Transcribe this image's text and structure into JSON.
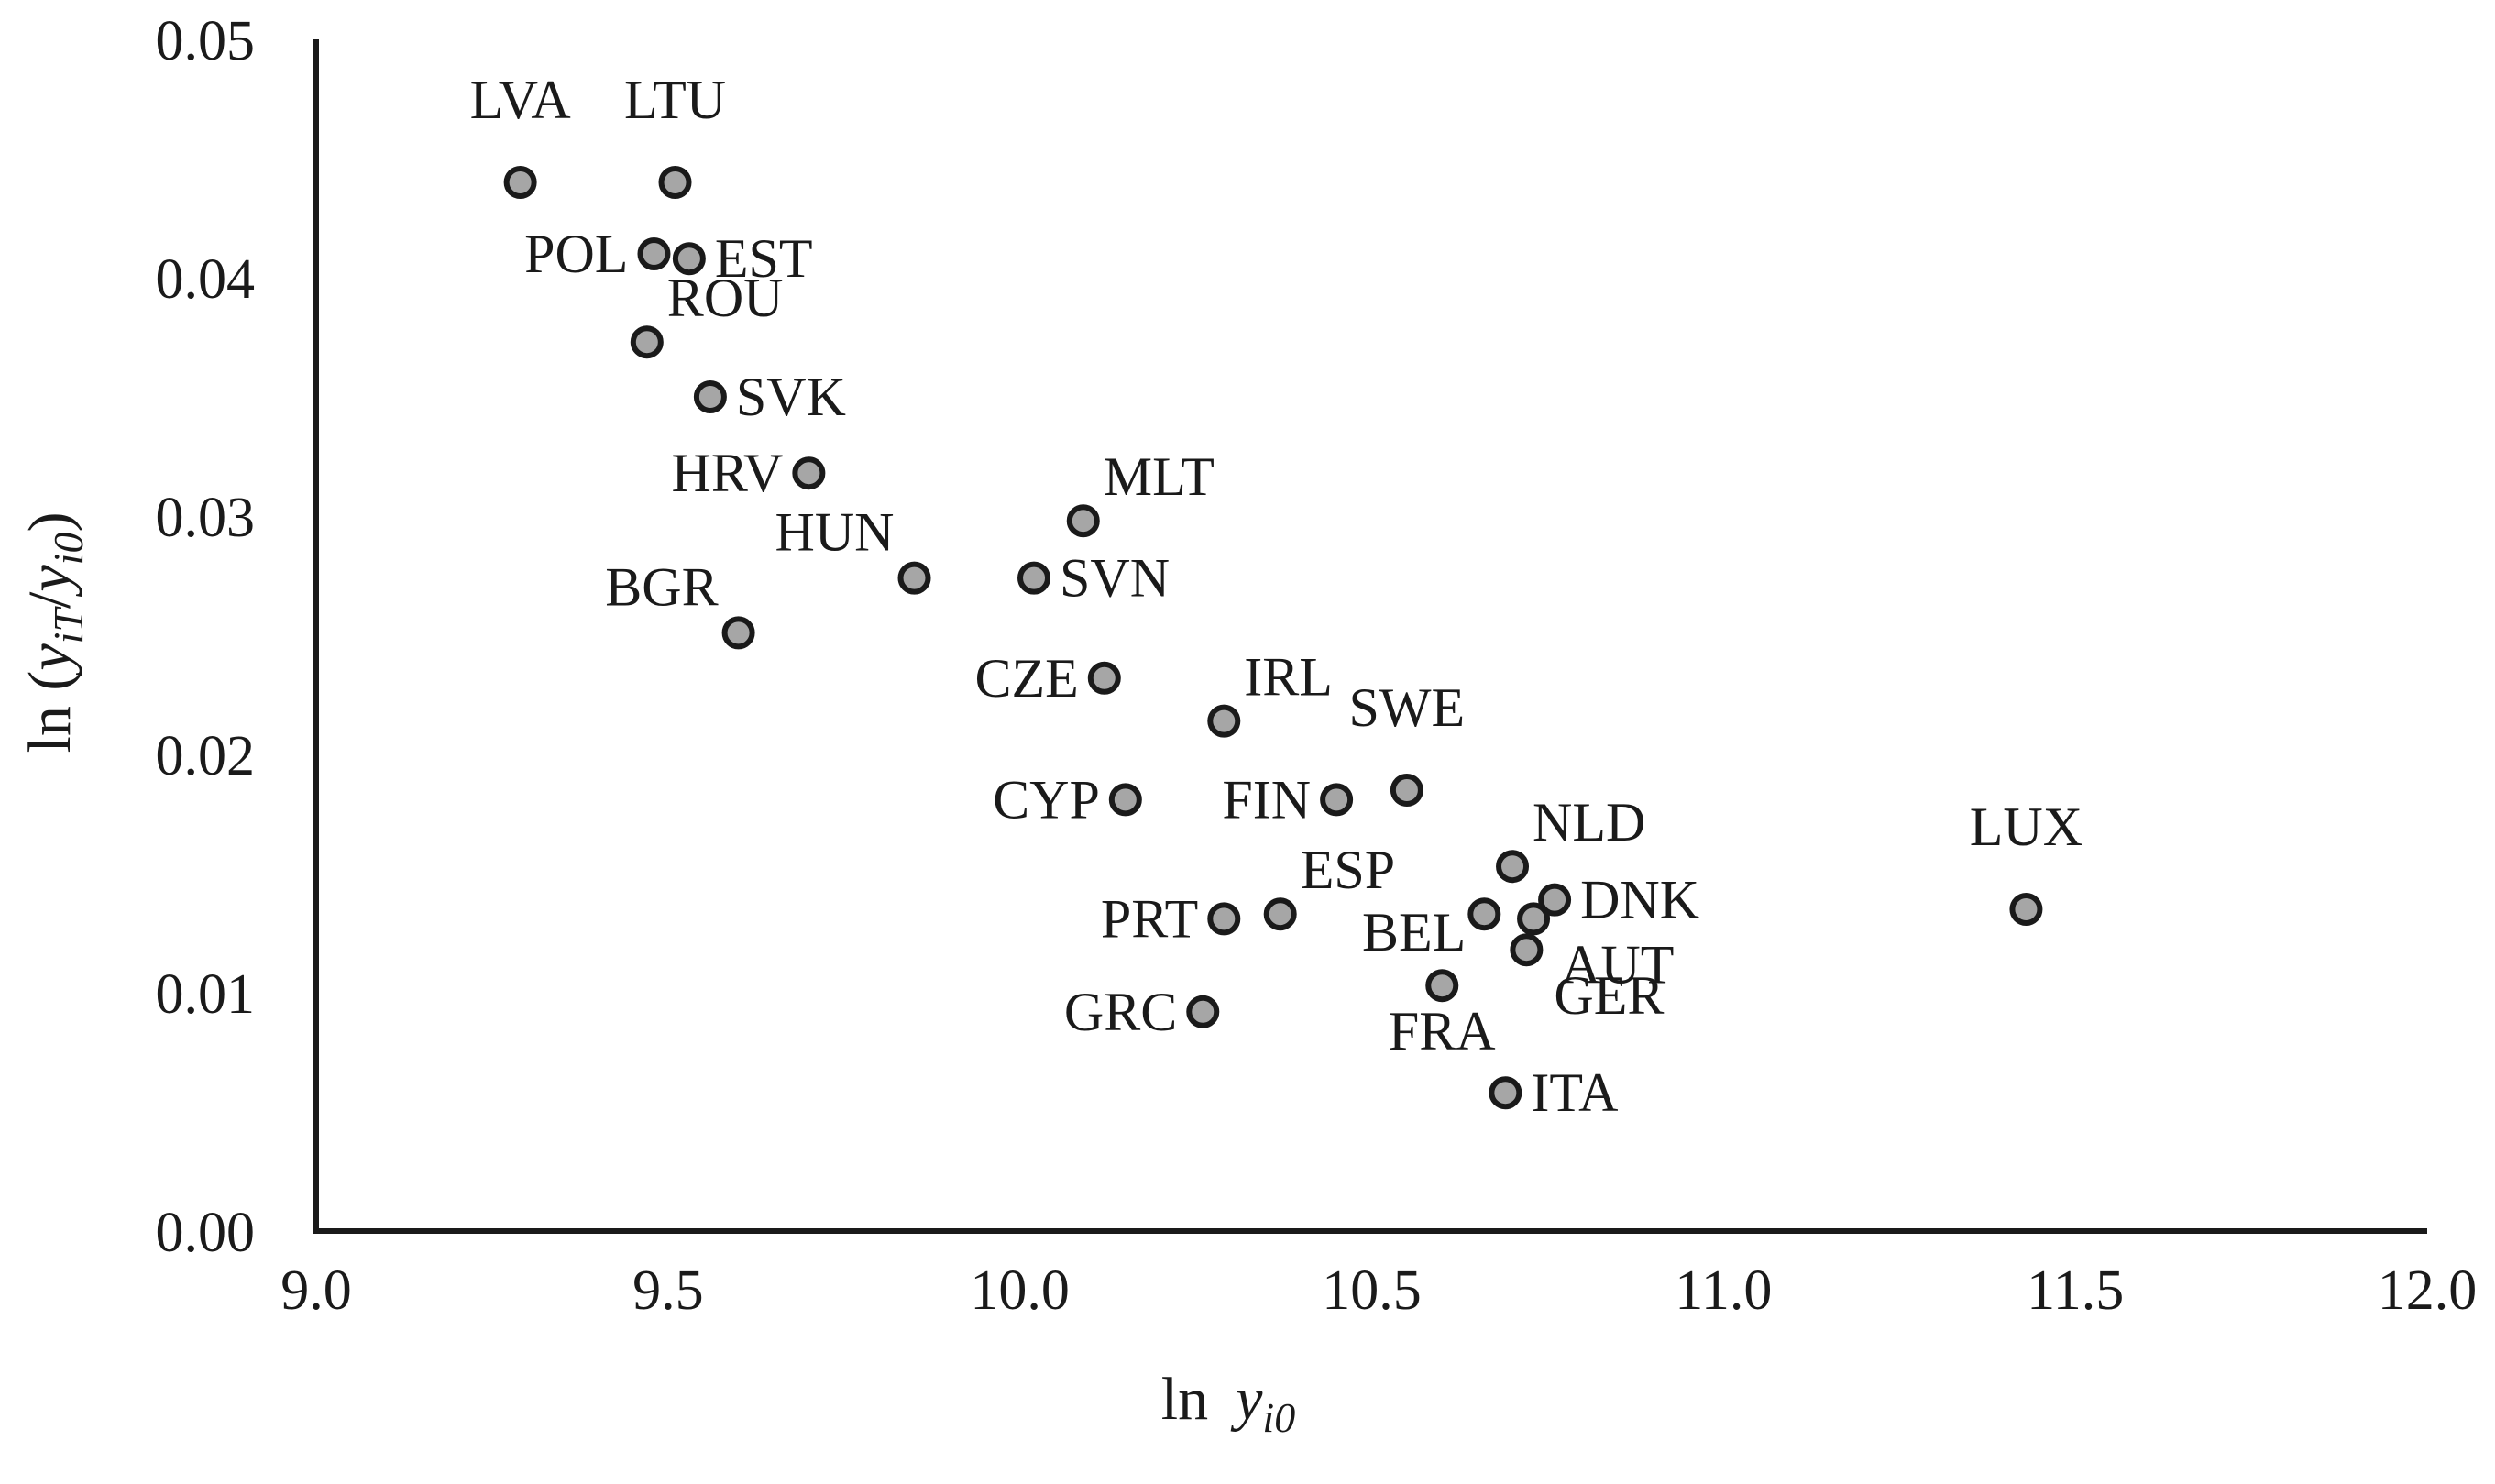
{
  "chart_data": {
    "type": "scatter",
    "title": "",
    "xlabel": {
      "main": "ln",
      "var": "y",
      "sub": "i0"
    },
    "ylabel": {
      "main": "ln (",
      "var1": "y",
      "sub1": "iT",
      "slash": "/",
      "var2": "y",
      "sub2": "i0",
      "close": ")"
    },
    "xlim": [
      9.0,
      12.0
    ],
    "ylim": [
      0.0,
      0.05
    ],
    "xticks": [
      "9.0",
      "9.5",
      "10.0",
      "10.5",
      "11.0",
      "11.5",
      "12.0"
    ],
    "yticks": [
      "0.00",
      "0.01",
      "0.02",
      "0.03",
      "0.04",
      "0.05"
    ],
    "grid": false,
    "legend": "none",
    "marker_color": "#a6a6a6",
    "marker_edge": "#1a1a1a",
    "points": [
      {
        "label": "LVA",
        "x": 9.29,
        "y": 0.044,
        "pos": "above"
      },
      {
        "label": "LTU",
        "x": 9.51,
        "y": 0.044,
        "pos": "above"
      },
      {
        "label": "POL",
        "x": 9.48,
        "y": 0.041,
        "pos": "left"
      },
      {
        "label": "EST",
        "x": 9.53,
        "y": 0.0408,
        "pos": "right"
      },
      {
        "label": "ROU",
        "x": 9.47,
        "y": 0.0373,
        "pos": "upper-right"
      },
      {
        "label": "SVK",
        "x": 9.56,
        "y": 0.035,
        "pos": "right"
      },
      {
        "label": "HRV",
        "x": 9.7,
        "y": 0.0318,
        "pos": "left"
      },
      {
        "label": "MLT",
        "x": 10.09,
        "y": 0.0298,
        "pos": "upper-right"
      },
      {
        "label": "HUN",
        "x": 9.85,
        "y": 0.0274,
        "pos": "upper-left"
      },
      {
        "label": "SVN",
        "x": 10.02,
        "y": 0.0274,
        "pos": "right"
      },
      {
        "label": "BGR",
        "x": 9.6,
        "y": 0.0251,
        "pos": "upper-left"
      },
      {
        "label": "CZE",
        "x": 10.12,
        "y": 0.0232,
        "pos": "left"
      },
      {
        "label": "IRL",
        "x": 10.29,
        "y": 0.0214,
        "pos": "upper-right"
      },
      {
        "label": "SWE",
        "x": 10.55,
        "y": 0.0185,
        "pos": "above"
      },
      {
        "label": "CYP",
        "x": 10.15,
        "y": 0.0181,
        "pos": "left"
      },
      {
        "label": "FIN",
        "x": 10.45,
        "y": 0.0181,
        "pos": "left"
      },
      {
        "label": "NLD",
        "x": 10.7,
        "y": 0.0153,
        "pos": "upper-right"
      },
      {
        "label": "LUX",
        "x": 11.43,
        "y": 0.0135,
        "pos": "above"
      },
      {
        "label": "DNK",
        "x": 10.76,
        "y": 0.0139,
        "pos": "right"
      },
      {
        "label": "ESP",
        "x": 10.37,
        "y": 0.0133,
        "pos": "upper-right"
      },
      {
        "label": "PRT",
        "x": 10.29,
        "y": 0.0131,
        "pos": "left"
      },
      {
        "label": "BEL",
        "x": 10.66,
        "y": 0.0133,
        "pos": "lower-left"
      },
      {
        "label": "AUT",
        "x": 10.73,
        "y": 0.0131,
        "pos": "lower-right"
      },
      {
        "label": "GER",
        "x": 10.72,
        "y": 0.0118,
        "pos": "lower-right"
      },
      {
        "label": "FRA",
        "x": 10.6,
        "y": 0.0103,
        "pos": "below"
      },
      {
        "label": "GRC",
        "x": 10.26,
        "y": 0.0092,
        "pos": "left"
      },
      {
        "label": "ITA",
        "x": 10.69,
        "y": 0.0058,
        "pos": "right"
      }
    ]
  }
}
